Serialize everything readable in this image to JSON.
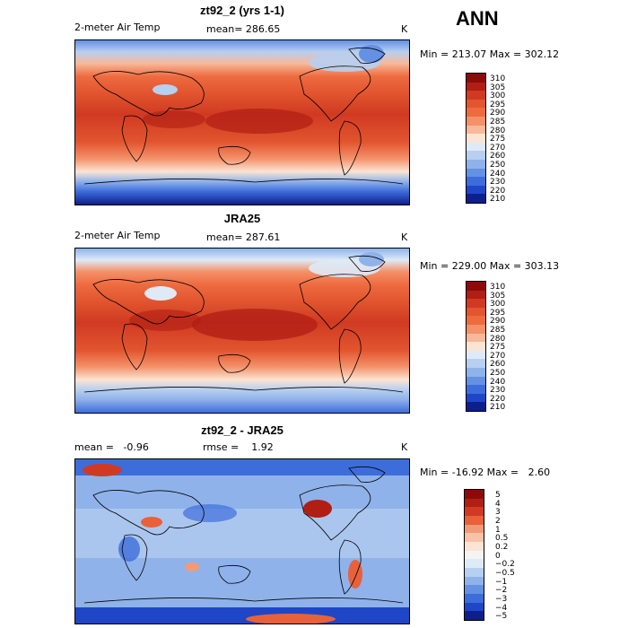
{
  "season": "ANN",
  "panels": [
    {
      "title": "zt92_2 (yrs 1-1)",
      "left_label": "2-meter Air Temp",
      "mid_label": "mean= 286.65",
      "units": "K",
      "minmax": "Min = 213.07 Max = 302.12",
      "levels": [
        "310",
        "305",
        "300",
        "295",
        "290",
        "285",
        "280",
        "275",
        "270",
        "260",
        "250",
        "240",
        "230",
        "220",
        "210"
      ],
      "colors": [
        "#8c0a0a",
        "#b01e14",
        "#d03a22",
        "#e2552f",
        "#ee6b40",
        "#f4916a",
        "#f7b99a",
        "#fbe4d4",
        "#dfeaf7",
        "#b7cff0",
        "#8fb2ea",
        "#6591e3",
        "#3d6ddb",
        "#1f46c7",
        "#0d1f8c"
      ]
    },
    {
      "title": "JRA25",
      "left_label": "2-meter Air Temp",
      "mid_label": "mean= 287.61",
      "units": "K",
      "minmax": "Min = 229.00 Max = 303.13",
      "levels": [
        "310",
        "305",
        "300",
        "295",
        "290",
        "285",
        "280",
        "275",
        "270",
        "260",
        "250",
        "240",
        "230",
        "220",
        "210"
      ],
      "colors": [
        "#8c0a0a",
        "#b01e14",
        "#d03a22",
        "#e2552f",
        "#ee6b40",
        "#f4916a",
        "#f7b99a",
        "#fbe4d4",
        "#dfeaf7",
        "#b7cff0",
        "#8fb2ea",
        "#6591e3",
        "#3d6ddb",
        "#1f46c7",
        "#0d1f8c"
      ]
    },
    {
      "title": "zt92_2 - JRA25",
      "left_label": "mean =   -0.96",
      "mid_label": "rmse =    1.92",
      "units": "K",
      "minmax": "Min = -16.92 Max =   2.60",
      "levels": [
        "5",
        "4",
        "3",
        "2",
        "1",
        "0.5",
        "0.2",
        "0",
        "−0.2",
        "−0.5",
        "−1",
        "−2",
        "−3",
        "−4",
        "−5"
      ],
      "colors": [
        "#8c0a0a",
        "#b01e14",
        "#d03a22",
        "#e8613a",
        "#f29a78",
        "#f7c2a8",
        "#fbe4d4",
        "#f4f4f4",
        "#dfeaf7",
        "#b7cff0",
        "#8fb2ea",
        "#6591e3",
        "#3d6ddb",
        "#1f46c7",
        "#0d1f8c"
      ]
    }
  ]
}
